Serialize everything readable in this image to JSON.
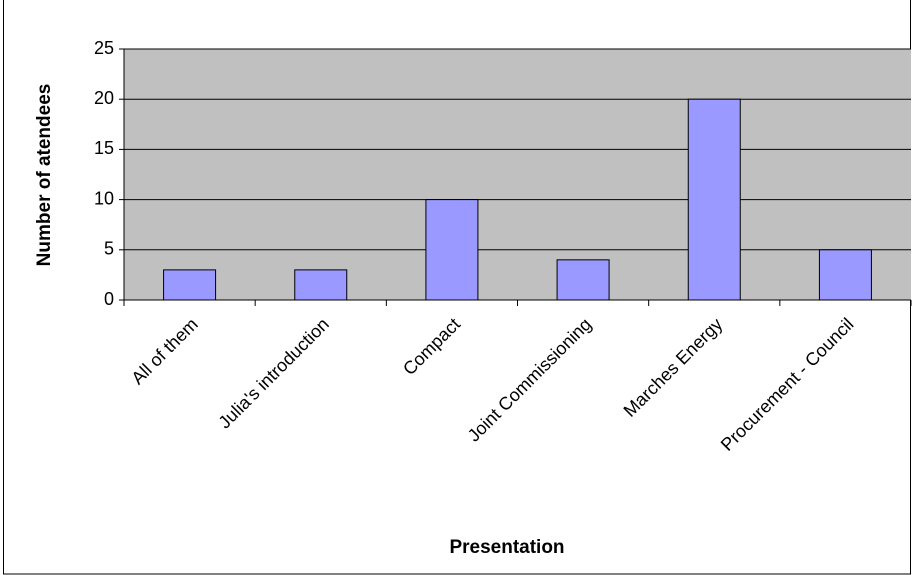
{
  "chart_data": {
    "type": "bar",
    "x_label": "Presentation",
    "y_label": "Number of atendees",
    "categories": [
      "All of them",
      "Julia's introduction",
      "Compact",
      "Joint Commissioning",
      "Marches Energy",
      "Procurement - Council"
    ],
    "values": [
      3,
      3,
      10,
      4,
      20,
      5
    ],
    "color": "#9999ff",
    "ylim": [
      0,
      25
    ],
    "yticks": [
      0,
      5,
      10,
      15,
      20,
      25
    ],
    "grid": true
  }
}
